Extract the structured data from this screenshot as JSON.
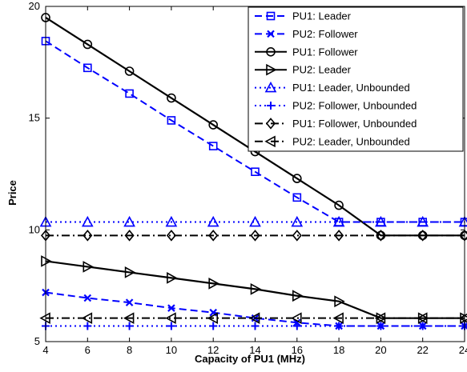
{
  "chart_data": {
    "type": "line",
    "title": "",
    "xlabel": "Capacity of PU1 (MHz)",
    "ylabel": "Price",
    "xlim": [
      4,
      24
    ],
    "ylim": [
      5,
      20
    ],
    "x_ticks": [
      4,
      6,
      8,
      10,
      12,
      14,
      16,
      18,
      20,
      22,
      24
    ],
    "y_ticks": [
      5,
      10,
      15,
      20
    ],
    "grid": false,
    "legend_position": "top-right",
    "x": [
      4,
      6,
      8,
      10,
      12,
      14,
      16,
      18,
      20,
      22,
      24
    ],
    "series": [
      {
        "name": "PU1: Leader",
        "color": "#0000ff",
        "linestyle": "dashed",
        "marker": "square",
        "values": [
          18.45,
          17.25,
          16.1,
          14.9,
          13.75,
          12.6,
          11.45,
          10.35,
          10.35,
          10.35,
          10.35
        ]
      },
      {
        "name": "PU2: Follower",
        "color": "#0000ff",
        "linestyle": "dashed",
        "marker": "x",
        "values": [
          7.2,
          6.95,
          6.75,
          6.5,
          6.3,
          6.05,
          5.85,
          5.7,
          5.7,
          5.7,
          5.7
        ]
      },
      {
        "name": "PU1: Follower",
        "color": "#000000",
        "linestyle": "solid",
        "marker": "circle",
        "values": [
          19.5,
          18.3,
          17.1,
          15.9,
          14.7,
          13.5,
          12.3,
          11.1,
          9.75,
          9.75,
          9.75
        ]
      },
      {
        "name": "PU2: Leader",
        "color": "#000000",
        "linestyle": "solid",
        "marker": "triangle-right",
        "values": [
          8.6,
          8.35,
          8.1,
          7.85,
          7.6,
          7.35,
          7.05,
          6.8,
          6.05,
          6.05,
          6.05
        ]
      },
      {
        "name": "PU1: Leader, Unbounded",
        "color": "#0000ff",
        "linestyle": "dotted",
        "marker": "triangle-up",
        "values": [
          10.35,
          10.35,
          10.35,
          10.35,
          10.35,
          10.35,
          10.35,
          10.35,
          10.35,
          10.35,
          10.35
        ]
      },
      {
        "name": "PU2: Follower, Unbounded",
        "color": "#0000ff",
        "linestyle": "dotted",
        "marker": "plus",
        "values": [
          5.7,
          5.7,
          5.7,
          5.7,
          5.7,
          5.7,
          5.7,
          5.7,
          5.7,
          5.7,
          5.7
        ]
      },
      {
        "name": "PU1: Follower, Unbounded",
        "color": "#000000",
        "linestyle": "dashdot",
        "marker": "diamond",
        "values": [
          9.75,
          9.75,
          9.75,
          9.75,
          9.75,
          9.75,
          9.75,
          9.75,
          9.75,
          9.75,
          9.75
        ]
      },
      {
        "name": "PU2: Leader, Unbounded",
        "color": "#000000",
        "linestyle": "dashdot",
        "marker": "triangle-left",
        "values": [
          6.05,
          6.05,
          6.05,
          6.05,
          6.05,
          6.05,
          6.05,
          6.05,
          6.05,
          6.05,
          6.05
        ]
      }
    ]
  }
}
